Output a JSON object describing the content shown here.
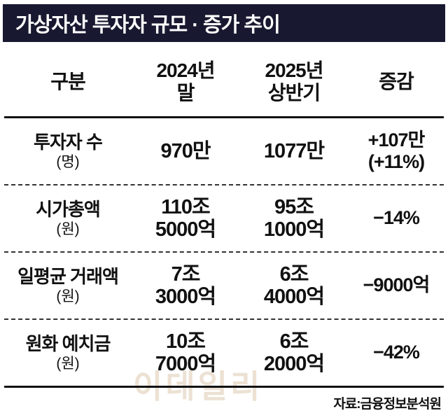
{
  "title": "가상자산 투자자 규모 · 증가 추이",
  "watermark": "이데일리",
  "source": "자료:금융정보분석원",
  "table": {
    "headers": {
      "col1": "구분",
      "col2": "2024년\n말",
      "col3": "2025년\n상반기",
      "col4": "증감"
    },
    "rows": [
      {
        "label": "투자자 수",
        "unit": "(명)",
        "v2024": "970만",
        "v2025": "1077만",
        "change": "+107만\n(+11%)"
      },
      {
        "label": "시가총액",
        "unit": "(원)",
        "v2024": "110조\n5000억",
        "v2025": "95조\n1000억",
        "change": "−14%"
      },
      {
        "label": "일평균 거래액",
        "unit": "(원)",
        "v2024": "7조\n3000억",
        "v2025": "6조\n4000억",
        "change": "−9000억"
      },
      {
        "label": "원화 예치금",
        "unit": "(원)",
        "v2024": "10조\n7000억",
        "v2025": "6조\n2000억",
        "change": "−42%"
      }
    ]
  },
  "chart_data": {
    "type": "table",
    "title": "가상자산 투자자 규모 · 증가 추이",
    "columns": [
      "구분",
      "2024년 말",
      "2025년 상반기",
      "증감"
    ],
    "rows": [
      [
        "투자자 수 (명)",
        "970만",
        "1077만",
        "+107만 (+11%)"
      ],
      [
        "시가총액 (원)",
        "110조 5000억",
        "95조 1000억",
        "−14%"
      ],
      [
        "일평균 거래액 (원)",
        "7조 3000억",
        "6조 4000억",
        "−9000억"
      ],
      [
        "원화 예치금 (원)",
        "10조 7000억",
        "6조 2000억",
        "−42%"
      ]
    ],
    "source": "자료:금융정보분석원"
  }
}
